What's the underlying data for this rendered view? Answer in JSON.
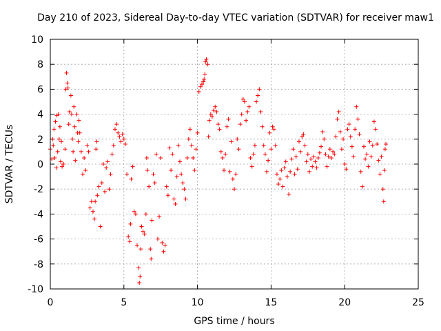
{
  "chart_data": {
    "type": "scatter",
    "title": "Day 210 of 2023, Sidereal Day-to-day VTEC variation (SDTVAR) for receiver maw1",
    "xlabel": "GPS time / hours",
    "ylabel": "SDTVAR / TECUs",
    "xlim": [
      0,
      25
    ],
    "ylim": [
      -10,
      10
    ],
    "xticks": [
      0,
      5,
      10,
      15,
      20,
      25
    ],
    "yticks": [
      -10,
      -8,
      -6,
      -4,
      -2,
      0,
      2,
      4,
      6,
      8,
      10
    ],
    "xtick_labels": [
      "0",
      "5",
      "10",
      "15",
      "20",
      "25"
    ],
    "ytick_labels": [
      "-10",
      "-8",
      "-6",
      "-4",
      "-2",
      "0",
      "2",
      "4",
      "6",
      "8",
      "10"
    ],
    "grid": true,
    "marker": "+",
    "color": "#ff0000",
    "series": [
      {
        "name": "SDTVAR",
        "points": [
          [
            0.0,
            1.2
          ],
          [
            0.1,
            0.4
          ],
          [
            0.15,
            2.0
          ],
          [
            0.2,
            1.5
          ],
          [
            0.25,
            2.8
          ],
          [
            0.3,
            0.5
          ],
          [
            0.35,
            3.4
          ],
          [
            0.4,
            -0.3
          ],
          [
            0.45,
            3.9
          ],
          [
            0.5,
            1.0
          ],
          [
            0.55,
            4.0
          ],
          [
            0.6,
            2.0
          ],
          [
            0.65,
            3.0
          ],
          [
            0.7,
            0.2
          ],
          [
            0.75,
            1.8
          ],
          [
            0.8,
            -0.2
          ],
          [
            0.9,
            0.0
          ],
          [
            1.0,
            1.2
          ],
          [
            1.05,
            6.0
          ],
          [
            1.1,
            7.3
          ],
          [
            1.15,
            6.5
          ],
          [
            1.2,
            6.1
          ],
          [
            1.25,
            3.2
          ],
          [
            1.3,
            4.2
          ],
          [
            1.4,
            5.5
          ],
          [
            1.45,
            4.0
          ],
          [
            1.5,
            2.0
          ],
          [
            1.55,
            1.0
          ],
          [
            1.6,
            4.6
          ],
          [
            1.65,
            3.0
          ],
          [
            1.7,
            0.3
          ],
          [
            1.8,
            4.0
          ],
          [
            1.85,
            2.5
          ],
          [
            1.9,
            1.8
          ],
          [
            1.95,
            3.5
          ],
          [
            2.0,
            2.5
          ],
          [
            2.1,
            1.0
          ],
          [
            2.2,
            -0.8
          ],
          [
            2.3,
            0.5
          ],
          [
            2.4,
            -0.5
          ],
          [
            2.5,
            1.5
          ],
          [
            2.6,
            1.0
          ],
          [
            2.7,
            -3.5
          ],
          [
            2.8,
            -3.0
          ],
          [
            2.9,
            -3.8
          ],
          [
            3.0,
            -4.4
          ],
          [
            3.05,
            -3.0
          ],
          [
            3.1,
            1.2
          ],
          [
            3.15,
            1.8
          ],
          [
            3.2,
            -2.5
          ],
          [
            3.3,
            -1.8
          ],
          [
            3.4,
            -5.0
          ],
          [
            3.5,
            -1.5
          ],
          [
            3.6,
            0.0
          ],
          [
            3.7,
            -2.2
          ],
          [
            3.8,
            -0.3
          ],
          [
            3.9,
            0.2
          ],
          [
            4.0,
            -2.0
          ],
          [
            4.1,
            -0.8
          ],
          [
            4.2,
            0.8
          ],
          [
            4.3,
            1.5
          ],
          [
            4.4,
            2.8
          ],
          [
            4.5,
            3.2
          ],
          [
            4.6,
            2.5
          ],
          [
            4.7,
            2.2
          ],
          [
            4.8,
            1.8
          ],
          [
            4.9,
            2.4
          ],
          [
            5.0,
            2.0
          ],
          [
            5.1,
            1.6
          ],
          [
            5.2,
            -0.8
          ],
          [
            5.3,
            -5.8
          ],
          [
            5.4,
            -6.2
          ],
          [
            5.45,
            -4.8
          ],
          [
            5.5,
            -1.2
          ],
          [
            5.6,
            -0.2
          ],
          [
            5.7,
            -3.8
          ],
          [
            5.8,
            -4.0
          ],
          [
            5.9,
            -6.5
          ],
          [
            6.0,
            -8.3
          ],
          [
            6.05,
            -9.5
          ],
          [
            6.1,
            -9.0
          ],
          [
            6.15,
            -6.8
          ],
          [
            6.2,
            -5.0
          ],
          [
            6.3,
            -5.4
          ],
          [
            6.4,
            -5.6
          ],
          [
            6.5,
            -4.0
          ],
          [
            6.55,
            0.5
          ],
          [
            6.6,
            -0.5
          ],
          [
            6.7,
            -1.8
          ],
          [
            6.8,
            -6.8
          ],
          [
            6.85,
            -7.6
          ],
          [
            6.9,
            -4.5
          ],
          [
            7.0,
            -0.8
          ],
          [
            7.1,
            -1.5
          ],
          [
            7.2,
            0.8
          ],
          [
            7.3,
            -6.0
          ],
          [
            7.4,
            -4.2
          ],
          [
            7.5,
            0.5
          ],
          [
            7.6,
            -6.3
          ],
          [
            7.7,
            -7.0
          ],
          [
            7.8,
            -6.5
          ],
          [
            7.9,
            -1.8
          ],
          [
            8.0,
            -2.5
          ],
          [
            8.1,
            1.3
          ],
          [
            8.2,
            -0.5
          ],
          [
            8.3,
            0.8
          ],
          [
            8.4,
            -2.8
          ],
          [
            8.5,
            -3.2
          ],
          [
            8.6,
            -1.0
          ],
          [
            8.7,
            1.5
          ],
          [
            8.8,
            0.2
          ],
          [
            8.9,
            -0.8
          ],
          [
            9.0,
            -1.5
          ],
          [
            9.1,
            -2.0
          ],
          [
            9.2,
            -2.8
          ],
          [
            9.3,
            0.5
          ],
          [
            9.4,
            2.0
          ],
          [
            9.5,
            2.8
          ],
          [
            9.6,
            1.5
          ],
          [
            9.7,
            0.5
          ],
          [
            9.8,
            -0.5
          ],
          [
            9.9,
            1.2
          ],
          [
            10.0,
            2.5
          ],
          [
            10.1,
            5.8
          ],
          [
            10.2,
            6.2
          ],
          [
            10.3,
            6.4
          ],
          [
            10.4,
            6.6
          ],
          [
            10.45,
            6.8
          ],
          [
            10.5,
            7.2
          ],
          [
            10.55,
            8.2
          ],
          [
            10.6,
            8.4
          ],
          [
            10.7,
            8.0
          ],
          [
            10.75,
            2.2
          ],
          [
            10.8,
            3.5
          ],
          [
            10.9,
            4.0
          ],
          [
            11.0,
            3.8
          ],
          [
            11.1,
            4.3
          ],
          [
            11.2,
            4.6
          ],
          [
            11.3,
            4.2
          ],
          [
            11.4,
            3.2
          ],
          [
            11.5,
            2.8
          ],
          [
            11.6,
            1.0
          ],
          [
            11.7,
            0.5
          ],
          [
            11.8,
            -0.5
          ],
          [
            11.9,
            0.8
          ],
          [
            12.0,
            3.0
          ],
          [
            12.1,
            3.6
          ],
          [
            12.2,
            -0.6
          ],
          [
            12.3,
            1.8
          ],
          [
            12.4,
            -1.2
          ],
          [
            12.5,
            -2.0
          ],
          [
            12.6,
            -0.8
          ],
          [
            12.7,
            2.0
          ],
          [
            12.8,
            1.2
          ],
          [
            12.9,
            3.2
          ],
          [
            13.0,
            4.0
          ],
          [
            13.1,
            5.2
          ],
          [
            13.2,
            5.0
          ],
          [
            13.3,
            3.5
          ],
          [
            13.4,
            4.2
          ],
          [
            13.5,
            4.6
          ],
          [
            13.6,
            0.5
          ],
          [
            13.7,
            -0.2
          ],
          [
            13.8,
            0.8
          ],
          [
            13.9,
            1.5
          ],
          [
            14.0,
            5.0
          ],
          [
            14.1,
            5.5
          ],
          [
            14.2,
            6.0
          ],
          [
            14.3,
            4.2
          ],
          [
            14.4,
            3.0
          ],
          [
            14.5,
            1.5
          ],
          [
            14.6,
            0.8
          ],
          [
            14.7,
            -0.6
          ],
          [
            14.8,
            0.3
          ],
          [
            14.9,
            2.5
          ],
          [
            15.0,
            1.2
          ],
          [
            15.1,
            3.0
          ],
          [
            15.2,
            2.8
          ],
          [
            15.3,
            1.5
          ],
          [
            15.4,
            -0.8
          ],
          [
            15.5,
            -1.6
          ],
          [
            15.6,
            -1.2
          ],
          [
            15.7,
            -0.5
          ],
          [
            15.8,
            -1.8
          ],
          [
            15.9,
            -0.3
          ],
          [
            16.0,
            0.2
          ],
          [
            16.1,
            -1.0
          ],
          [
            16.2,
            -2.4
          ],
          [
            16.3,
            -0.6
          ],
          [
            16.4,
            0.4
          ],
          [
            16.5,
            1.2
          ],
          [
            16.6,
            -0.8
          ],
          [
            16.7,
            0.6
          ],
          [
            16.8,
            -0.4
          ],
          [
            16.9,
            1.8
          ],
          [
            17.0,
            1.0
          ],
          [
            17.1,
            2.2
          ],
          [
            17.2,
            2.4
          ],
          [
            17.3,
            1.5
          ],
          [
            17.4,
            0.2
          ],
          [
            17.5,
            0.8
          ],
          [
            17.6,
            -0.6
          ],
          [
            17.7,
            0.4
          ],
          [
            17.8,
            -0.2
          ],
          [
            17.9,
            0.6
          ],
          [
            18.0,
            0.2
          ],
          [
            18.1,
            -0.3
          ],
          [
            18.2,
            0.5
          ],
          [
            18.3,
            0.9
          ],
          [
            18.4,
            1.4
          ],
          [
            18.5,
            2.6
          ],
          [
            18.6,
            2.0
          ],
          [
            18.7,
            0.8
          ],
          [
            18.8,
            -0.2
          ],
          [
            18.9,
            0.6
          ],
          [
            19.0,
            1.2
          ],
          [
            19.1,
            0.5
          ],
          [
            19.2,
            1.0
          ],
          [
            19.3,
            0.8
          ],
          [
            19.4,
            2.2
          ],
          [
            19.5,
            3.6
          ],
          [
            19.6,
            4.2
          ],
          [
            19.7,
            2.6
          ],
          [
            19.8,
            1.2
          ],
          [
            19.9,
            2.0
          ],
          [
            20.0,
            0.0
          ],
          [
            20.1,
            -0.4
          ],
          [
            20.2,
            2.8
          ],
          [
            20.3,
            3.2
          ],
          [
            20.4,
            2.2
          ],
          [
            20.5,
            1.4
          ],
          [
            20.6,
            0.6
          ],
          [
            20.7,
            2.8
          ],
          [
            20.8,
            4.6
          ],
          [
            20.9,
            3.6
          ],
          [
            21.0,
            2.4
          ],
          [
            21.1,
            -0.6
          ],
          [
            21.2,
            -1.8
          ],
          [
            21.3,
            1.4
          ],
          [
            21.4,
            0.4
          ],
          [
            21.5,
            0.8
          ],
          [
            21.6,
            -0.2
          ],
          [
            21.7,
            1.8
          ],
          [
            21.8,
            0.6
          ],
          [
            21.9,
            1.5
          ],
          [
            22.0,
            3.4
          ],
          [
            22.1,
            2.8
          ],
          [
            22.2,
            1.6
          ],
          [
            22.3,
            0.3
          ],
          [
            22.4,
            -0.8
          ],
          [
            22.5,
            0.6
          ],
          [
            22.6,
            -2.0
          ],
          [
            22.65,
            -3.0
          ],
          [
            22.7,
            -0.5
          ],
          [
            22.75,
            1.2
          ],
          [
            22.8,
            1.6
          ]
        ]
      }
    ]
  }
}
